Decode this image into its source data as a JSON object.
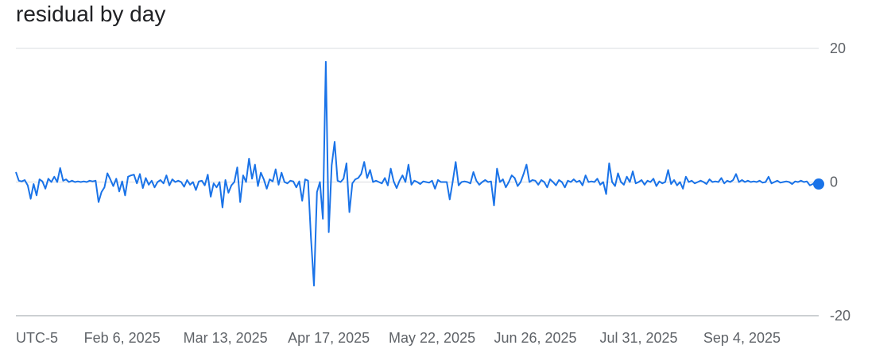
{
  "chart_data": {
    "type": "line",
    "title": "residual by day",
    "timezone_label": "UTC-5",
    "x_start": "2025-01-01",
    "x_end": "2025-09-30",
    "x_tick_labels": [
      {
        "date": "2025-02-06",
        "label": "Feb 6, 2025"
      },
      {
        "date": "2025-03-13",
        "label": "Mar 13, 2025"
      },
      {
        "date": "2025-04-17",
        "label": "Apr 17, 2025"
      },
      {
        "date": "2025-05-22",
        "label": "May 22, 2025"
      },
      {
        "date": "2025-06-26",
        "label": "Jun 26, 2025"
      },
      {
        "date": "2025-07-31",
        "label": "Jul 31, 2025"
      },
      {
        "date": "2025-09-04",
        "label": "Sep 4, 2025"
      }
    ],
    "y_ticks": [
      20,
      0,
      -20
    ],
    "ylim": [
      -20,
      20
    ],
    "grid": true,
    "line_color": "#1a73e8",
    "series": [
      {
        "values": [
          [
            "2025-01-01",
            1.5
          ],
          [
            "2025-01-02",
            0.2
          ],
          [
            "2025-01-03",
            0.1
          ],
          [
            "2025-01-04",
            0.3
          ],
          [
            "2025-01-05",
            -0.5
          ],
          [
            "2025-01-06",
            -2.5
          ],
          [
            "2025-01-07",
            -0.3
          ],
          [
            "2025-01-08",
            -2.0
          ],
          [
            "2025-01-09",
            0.4
          ],
          [
            "2025-01-10",
            0.1
          ],
          [
            "2025-01-11",
            -1.0
          ],
          [
            "2025-01-12",
            0.5
          ],
          [
            "2025-01-13",
            0.0
          ],
          [
            "2025-01-14",
            0.8
          ],
          [
            "2025-01-15",
            0.0
          ],
          [
            "2025-01-16",
            2.1
          ],
          [
            "2025-01-17",
            0.2
          ],
          [
            "2025-01-18",
            0.4
          ],
          [
            "2025-01-19",
            0.0
          ],
          [
            "2025-01-20",
            0.2
          ],
          [
            "2025-01-21",
            0.0
          ],
          [
            "2025-01-22",
            0.1
          ],
          [
            "2025-01-23",
            0.0
          ],
          [
            "2025-01-24",
            0.1
          ],
          [
            "2025-01-25",
            0.0
          ],
          [
            "2025-01-26",
            0.2
          ],
          [
            "2025-01-27",
            0.1
          ],
          [
            "2025-01-28",
            0.2
          ],
          [
            "2025-01-29",
            -3.0
          ],
          [
            "2025-01-30",
            -1.5
          ],
          [
            "2025-01-31",
            -0.8
          ],
          [
            "2025-02-01",
            1.3
          ],
          [
            "2025-02-02",
            0.4
          ],
          [
            "2025-02-03",
            -0.6
          ],
          [
            "2025-02-04",
            0.5
          ],
          [
            "2025-02-05",
            -1.4
          ],
          [
            "2025-02-06",
            0.1
          ],
          [
            "2025-02-07",
            -2.0
          ],
          [
            "2025-02-08",
            0.8
          ],
          [
            "2025-02-09",
            1.0
          ],
          [
            "2025-02-10",
            1.1
          ],
          [
            "2025-02-11",
            -0.2
          ],
          [
            "2025-02-12",
            1.2
          ],
          [
            "2025-02-13",
            -0.9
          ],
          [
            "2025-02-14",
            0.6
          ],
          [
            "2025-02-15",
            -0.4
          ],
          [
            "2025-02-16",
            0.2
          ],
          [
            "2025-02-17",
            -0.8
          ],
          [
            "2025-02-18",
            0.0
          ],
          [
            "2025-02-19",
            0.3
          ],
          [
            "2025-02-20",
            -0.2
          ],
          [
            "2025-02-21",
            1.0
          ],
          [
            "2025-02-22",
            -0.5
          ],
          [
            "2025-02-23",
            0.4
          ],
          [
            "2025-02-24",
            0.0
          ],
          [
            "2025-02-25",
            0.2
          ],
          [
            "2025-02-26",
            0.0
          ],
          [
            "2025-02-27",
            -0.7
          ],
          [
            "2025-02-28",
            0.3
          ],
          [
            "2025-03-01",
            -0.4
          ],
          [
            "2025-03-02",
            0.0
          ],
          [
            "2025-03-03",
            -1.2
          ],
          [
            "2025-03-04",
            0.1
          ],
          [
            "2025-03-05",
            0.2
          ],
          [
            "2025-03-06",
            -0.5
          ],
          [
            "2025-03-07",
            1.1
          ],
          [
            "2025-03-08",
            -2.2
          ],
          [
            "2025-03-09",
            -0.2
          ],
          [
            "2025-03-10",
            -0.8
          ],
          [
            "2025-03-11",
            0.0
          ],
          [
            "2025-03-12",
            -3.8
          ],
          [
            "2025-03-13",
            0.3
          ],
          [
            "2025-03-14",
            -1.6
          ],
          [
            "2025-03-15",
            -0.5
          ],
          [
            "2025-03-16",
            0.0
          ],
          [
            "2025-03-17",
            2.2
          ],
          [
            "2025-03-18",
            -3.0
          ],
          [
            "2025-03-19",
            1.0
          ],
          [
            "2025-03-20",
            0.0
          ],
          [
            "2025-03-21",
            3.5
          ],
          [
            "2025-03-22",
            0.5
          ],
          [
            "2025-03-23",
            2.6
          ],
          [
            "2025-03-24",
            -0.6
          ],
          [
            "2025-03-25",
            1.4
          ],
          [
            "2025-03-26",
            0.4
          ],
          [
            "2025-03-27",
            -1.0
          ],
          [
            "2025-03-28",
            0.4
          ],
          [
            "2025-03-29",
            0.1
          ],
          [
            "2025-03-30",
            1.9
          ],
          [
            "2025-03-31",
            -0.4
          ],
          [
            "2025-04-01",
            1.4
          ],
          [
            "2025-04-02",
            0.0
          ],
          [
            "2025-04-03",
            -0.2
          ],
          [
            "2025-04-04",
            0.2
          ],
          [
            "2025-04-05",
            0.1
          ],
          [
            "2025-04-06",
            -0.8
          ],
          [
            "2025-04-07",
            0.1
          ],
          [
            "2025-04-08",
            -2.8
          ],
          [
            "2025-04-09",
            0.4
          ],
          [
            "2025-04-10",
            0.2
          ],
          [
            "2025-04-11",
            -8.5
          ],
          [
            "2025-04-12",
            -15.5
          ],
          [
            "2025-04-13",
            -1.5
          ],
          [
            "2025-04-14",
            0.0
          ],
          [
            "2025-04-15",
            -5.5
          ],
          [
            "2025-04-16",
            18.0
          ],
          [
            "2025-04-17",
            -7.5
          ],
          [
            "2025-04-18",
            2.5
          ],
          [
            "2025-04-19",
            6.0
          ],
          [
            "2025-04-20",
            0.2
          ],
          [
            "2025-04-21",
            0.0
          ],
          [
            "2025-04-22",
            0.5
          ],
          [
            "2025-04-23",
            2.8
          ],
          [
            "2025-04-24",
            -4.5
          ],
          [
            "2025-04-25",
            -0.2
          ],
          [
            "2025-04-26",
            0.4
          ],
          [
            "2025-04-27",
            0.6
          ],
          [
            "2025-04-28",
            1.2
          ],
          [
            "2025-04-29",
            3.0
          ],
          [
            "2025-04-30",
            0.6
          ],
          [
            "2025-05-01",
            1.8
          ],
          [
            "2025-05-02",
            0.0
          ],
          [
            "2025-05-03",
            0.2
          ],
          [
            "2025-05-04",
            0.0
          ],
          [
            "2025-05-05",
            -0.2
          ],
          [
            "2025-05-06",
            0.6
          ],
          [
            "2025-05-07",
            -0.5
          ],
          [
            "2025-05-08",
            2.0
          ],
          [
            "2025-05-09",
            0.1
          ],
          [
            "2025-05-10",
            -0.9
          ],
          [
            "2025-05-11",
            0.2
          ],
          [
            "2025-05-12",
            1.0
          ],
          [
            "2025-05-13",
            0.0
          ],
          [
            "2025-05-14",
            2.6
          ],
          [
            "2025-05-15",
            -0.4
          ],
          [
            "2025-05-16",
            0.2
          ],
          [
            "2025-05-17",
            0.0
          ],
          [
            "2025-05-18",
            -0.3
          ],
          [
            "2025-05-19",
            0.1
          ],
          [
            "2025-05-20",
            0.0
          ],
          [
            "2025-05-21",
            -0.1
          ],
          [
            "2025-05-22",
            0.2
          ],
          [
            "2025-05-23",
            -1.0
          ],
          [
            "2025-05-24",
            0.3
          ],
          [
            "2025-05-25",
            0.0
          ],
          [
            "2025-05-26",
            0.0
          ],
          [
            "2025-05-27",
            0.0
          ],
          [
            "2025-05-28",
            -2.6
          ],
          [
            "2025-05-29",
            0.1
          ],
          [
            "2025-05-30",
            3.0
          ],
          [
            "2025-05-31",
            -0.5
          ],
          [
            "2025-06-01",
            0.0
          ],
          [
            "2025-06-02",
            0.1
          ],
          [
            "2025-06-03",
            0.0
          ],
          [
            "2025-06-04",
            -0.2
          ],
          [
            "2025-06-05",
            1.5
          ],
          [
            "2025-06-06",
            0.2
          ],
          [
            "2025-06-07",
            -0.4
          ],
          [
            "2025-06-08",
            0.0
          ],
          [
            "2025-06-09",
            0.3
          ],
          [
            "2025-06-10",
            0.0
          ],
          [
            "2025-06-11",
            0.1
          ],
          [
            "2025-06-12",
            -3.5
          ],
          [
            "2025-06-13",
            2.0
          ],
          [
            "2025-06-14",
            0.0
          ],
          [
            "2025-06-15",
            0.4
          ],
          [
            "2025-06-16",
            -0.8
          ],
          [
            "2025-06-17",
            0.0
          ],
          [
            "2025-06-18",
            1.0
          ],
          [
            "2025-06-19",
            0.6
          ],
          [
            "2025-06-20",
            -0.6
          ],
          [
            "2025-06-21",
            0.0
          ],
          [
            "2025-06-22",
            1.2
          ],
          [
            "2025-06-23",
            2.6
          ],
          [
            "2025-06-24",
            0.0
          ],
          [
            "2025-06-25",
            0.3
          ],
          [
            "2025-06-26",
            0.2
          ],
          [
            "2025-06-27",
            -0.4
          ],
          [
            "2025-06-28",
            0.3
          ],
          [
            "2025-06-29",
            0.0
          ],
          [
            "2025-06-30",
            -0.8
          ],
          [
            "2025-07-01",
            0.4
          ],
          [
            "2025-07-02",
            0.0
          ],
          [
            "2025-07-03",
            -0.5
          ],
          [
            "2025-07-04",
            0.3
          ],
          [
            "2025-07-05",
            0.0
          ],
          [
            "2025-07-06",
            -0.8
          ],
          [
            "2025-07-07",
            0.2
          ],
          [
            "2025-07-08",
            0.0
          ],
          [
            "2025-07-09",
            0.4
          ],
          [
            "2025-07-10",
            0.0
          ],
          [
            "2025-07-11",
            0.2
          ],
          [
            "2025-07-12",
            -0.5
          ],
          [
            "2025-07-13",
            1.0
          ],
          [
            "2025-07-14",
            0.0
          ],
          [
            "2025-07-15",
            0.1
          ],
          [
            "2025-07-16",
            0.0
          ],
          [
            "2025-07-17",
            0.5
          ],
          [
            "2025-07-18",
            -0.4
          ],
          [
            "2025-07-19",
            0.0
          ],
          [
            "2025-07-20",
            -1.8
          ],
          [
            "2025-07-21",
            2.8
          ],
          [
            "2025-07-22",
            0.0
          ],
          [
            "2025-07-23",
            -0.6
          ],
          [
            "2025-07-24",
            1.3
          ],
          [
            "2025-07-25",
            0.0
          ],
          [
            "2025-07-26",
            -0.4
          ],
          [
            "2025-07-27",
            0.8
          ],
          [
            "2025-07-28",
            0.0
          ],
          [
            "2025-07-29",
            1.6
          ],
          [
            "2025-07-30",
            -0.2
          ],
          [
            "2025-07-31",
            0.0
          ],
          [
            "2025-08-01",
            0.3
          ],
          [
            "2025-08-02",
            -0.4
          ],
          [
            "2025-08-03",
            0.2
          ],
          [
            "2025-08-04",
            0.0
          ],
          [
            "2025-08-05",
            0.5
          ],
          [
            "2025-08-06",
            -0.6
          ],
          [
            "2025-08-07",
            0.1
          ],
          [
            "2025-08-08",
            -0.2
          ],
          [
            "2025-08-09",
            0.0
          ],
          [
            "2025-08-10",
            1.8
          ],
          [
            "2025-08-11",
            -0.3
          ],
          [
            "2025-08-12",
            0.3
          ],
          [
            "2025-08-13",
            -0.5
          ],
          [
            "2025-08-14",
            0.0
          ],
          [
            "2025-08-15",
            -1.0
          ],
          [
            "2025-08-16",
            0.8
          ],
          [
            "2025-08-17",
            0.0
          ],
          [
            "2025-08-18",
            0.2
          ],
          [
            "2025-08-19",
            -0.2
          ],
          [
            "2025-08-20",
            0.0
          ],
          [
            "2025-08-21",
            0.2
          ],
          [
            "2025-08-22",
            0.0
          ],
          [
            "2025-08-23",
            -0.3
          ],
          [
            "2025-08-24",
            0.4
          ],
          [
            "2025-08-25",
            0.0
          ],
          [
            "2025-08-26",
            0.1
          ],
          [
            "2025-08-27",
            0.0
          ],
          [
            "2025-08-28",
            0.6
          ],
          [
            "2025-08-29",
            -0.2
          ],
          [
            "2025-08-30",
            0.2
          ],
          [
            "2025-08-31",
            0.0
          ],
          [
            "2025-09-01",
            0.3
          ],
          [
            "2025-09-02",
            1.2
          ],
          [
            "2025-09-03",
            0.0
          ],
          [
            "2025-09-04",
            0.3
          ],
          [
            "2025-09-05",
            0.0
          ],
          [
            "2025-09-06",
            0.2
          ],
          [
            "2025-09-07",
            0.0
          ],
          [
            "2025-09-08",
            0.1
          ],
          [
            "2025-09-09",
            0.0
          ],
          [
            "2025-09-10",
            0.2
          ],
          [
            "2025-09-11",
            -0.1
          ],
          [
            "2025-09-12",
            0.0
          ],
          [
            "2025-09-13",
            0.8
          ],
          [
            "2025-09-14",
            -0.2
          ],
          [
            "2025-09-15",
            0.0
          ],
          [
            "2025-09-16",
            0.2
          ],
          [
            "2025-09-17",
            -0.1
          ],
          [
            "2025-09-18",
            0.0
          ],
          [
            "2025-09-19",
            0.1
          ],
          [
            "2025-09-20",
            0.0
          ],
          [
            "2025-09-21",
            -0.3
          ],
          [
            "2025-09-22",
            0.1
          ],
          [
            "2025-09-23",
            0.0
          ],
          [
            "2025-09-24",
            0.2
          ],
          [
            "2025-09-25",
            0.0
          ],
          [
            "2025-09-26",
            0.1
          ],
          [
            "2025-09-27",
            -0.5
          ],
          [
            "2025-09-28",
            -0.3
          ],
          [
            "2025-09-29",
            0.1
          ],
          [
            "2025-09-30",
            -0.3
          ]
        ]
      }
    ]
  }
}
